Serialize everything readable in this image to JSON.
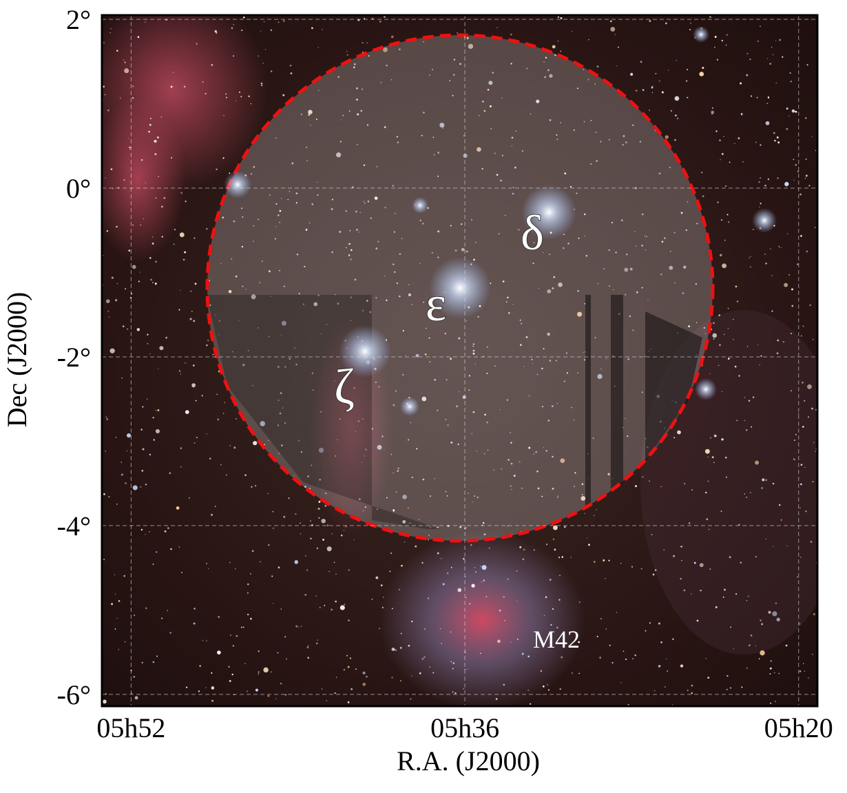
{
  "chart_data": {
    "type": "sky-image",
    "xlabel": "R.A. (J2000)",
    "ylabel": "Dec (J2000)",
    "xlim": [
      353.4,
      319.1
    ],
    "xticks": [
      {
        "value": 352,
        "label": "05h52"
      },
      {
        "value": 336,
        "label": "05h36"
      },
      {
        "value": 320,
        "label": "05h20"
      }
    ],
    "ylim": [
      -6.14,
      2.05
    ],
    "yticks": [
      {
        "value": 2,
        "label": "2°"
      },
      {
        "value": 0,
        "label": "0°"
      },
      {
        "value": -2,
        "label": "-2°"
      },
      {
        "value": -4,
        "label": "-4°"
      },
      {
        "value": -6,
        "label": "-6°"
      }
    ],
    "grid": true,
    "annotations": [
      "δ",
      "ε",
      "ζ",
      "M42"
    ]
  }
}
